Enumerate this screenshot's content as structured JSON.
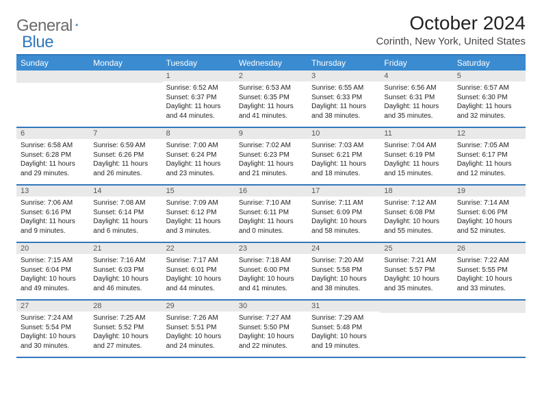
{
  "logo": {
    "word1": "General",
    "word2": "Blue"
  },
  "title": "October 2024",
  "subtitle": "Corinth, New York, United States",
  "colors": {
    "accent": "#2f77bb",
    "header_bg": "#3b8bd0",
    "daynum_bg": "#e9e9e9",
    "logo_gray": "#6a6a6a"
  },
  "weekdays": [
    "Sunday",
    "Monday",
    "Tuesday",
    "Wednesday",
    "Thursday",
    "Friday",
    "Saturday"
  ],
  "weeks": [
    [
      null,
      null,
      {
        "n": "1",
        "sr": "Sunrise: 6:52 AM",
        "ss": "Sunset: 6:37 PM",
        "dl1": "Daylight: 11 hours",
        "dl2": "and 44 minutes."
      },
      {
        "n": "2",
        "sr": "Sunrise: 6:53 AM",
        "ss": "Sunset: 6:35 PM",
        "dl1": "Daylight: 11 hours",
        "dl2": "and 41 minutes."
      },
      {
        "n": "3",
        "sr": "Sunrise: 6:55 AM",
        "ss": "Sunset: 6:33 PM",
        "dl1": "Daylight: 11 hours",
        "dl2": "and 38 minutes."
      },
      {
        "n": "4",
        "sr": "Sunrise: 6:56 AM",
        "ss": "Sunset: 6:31 PM",
        "dl1": "Daylight: 11 hours",
        "dl2": "and 35 minutes."
      },
      {
        "n": "5",
        "sr": "Sunrise: 6:57 AM",
        "ss": "Sunset: 6:30 PM",
        "dl1": "Daylight: 11 hours",
        "dl2": "and 32 minutes."
      }
    ],
    [
      {
        "n": "6",
        "sr": "Sunrise: 6:58 AM",
        "ss": "Sunset: 6:28 PM",
        "dl1": "Daylight: 11 hours",
        "dl2": "and 29 minutes."
      },
      {
        "n": "7",
        "sr": "Sunrise: 6:59 AM",
        "ss": "Sunset: 6:26 PM",
        "dl1": "Daylight: 11 hours",
        "dl2": "and 26 minutes."
      },
      {
        "n": "8",
        "sr": "Sunrise: 7:00 AM",
        "ss": "Sunset: 6:24 PM",
        "dl1": "Daylight: 11 hours",
        "dl2": "and 23 minutes."
      },
      {
        "n": "9",
        "sr": "Sunrise: 7:02 AM",
        "ss": "Sunset: 6:23 PM",
        "dl1": "Daylight: 11 hours",
        "dl2": "and 21 minutes."
      },
      {
        "n": "10",
        "sr": "Sunrise: 7:03 AM",
        "ss": "Sunset: 6:21 PM",
        "dl1": "Daylight: 11 hours",
        "dl2": "and 18 minutes."
      },
      {
        "n": "11",
        "sr": "Sunrise: 7:04 AM",
        "ss": "Sunset: 6:19 PM",
        "dl1": "Daylight: 11 hours",
        "dl2": "and 15 minutes."
      },
      {
        "n": "12",
        "sr": "Sunrise: 7:05 AM",
        "ss": "Sunset: 6:17 PM",
        "dl1": "Daylight: 11 hours",
        "dl2": "and 12 minutes."
      }
    ],
    [
      {
        "n": "13",
        "sr": "Sunrise: 7:06 AM",
        "ss": "Sunset: 6:16 PM",
        "dl1": "Daylight: 11 hours",
        "dl2": "and 9 minutes."
      },
      {
        "n": "14",
        "sr": "Sunrise: 7:08 AM",
        "ss": "Sunset: 6:14 PM",
        "dl1": "Daylight: 11 hours",
        "dl2": "and 6 minutes."
      },
      {
        "n": "15",
        "sr": "Sunrise: 7:09 AM",
        "ss": "Sunset: 6:12 PM",
        "dl1": "Daylight: 11 hours",
        "dl2": "and 3 minutes."
      },
      {
        "n": "16",
        "sr": "Sunrise: 7:10 AM",
        "ss": "Sunset: 6:11 PM",
        "dl1": "Daylight: 11 hours",
        "dl2": "and 0 minutes."
      },
      {
        "n": "17",
        "sr": "Sunrise: 7:11 AM",
        "ss": "Sunset: 6:09 PM",
        "dl1": "Daylight: 10 hours",
        "dl2": "and 58 minutes."
      },
      {
        "n": "18",
        "sr": "Sunrise: 7:12 AM",
        "ss": "Sunset: 6:08 PM",
        "dl1": "Daylight: 10 hours",
        "dl2": "and 55 minutes."
      },
      {
        "n": "19",
        "sr": "Sunrise: 7:14 AM",
        "ss": "Sunset: 6:06 PM",
        "dl1": "Daylight: 10 hours",
        "dl2": "and 52 minutes."
      }
    ],
    [
      {
        "n": "20",
        "sr": "Sunrise: 7:15 AM",
        "ss": "Sunset: 6:04 PM",
        "dl1": "Daylight: 10 hours",
        "dl2": "and 49 minutes."
      },
      {
        "n": "21",
        "sr": "Sunrise: 7:16 AM",
        "ss": "Sunset: 6:03 PM",
        "dl1": "Daylight: 10 hours",
        "dl2": "and 46 minutes."
      },
      {
        "n": "22",
        "sr": "Sunrise: 7:17 AM",
        "ss": "Sunset: 6:01 PM",
        "dl1": "Daylight: 10 hours",
        "dl2": "and 44 minutes."
      },
      {
        "n": "23",
        "sr": "Sunrise: 7:18 AM",
        "ss": "Sunset: 6:00 PM",
        "dl1": "Daylight: 10 hours",
        "dl2": "and 41 minutes."
      },
      {
        "n": "24",
        "sr": "Sunrise: 7:20 AM",
        "ss": "Sunset: 5:58 PM",
        "dl1": "Daylight: 10 hours",
        "dl2": "and 38 minutes."
      },
      {
        "n": "25",
        "sr": "Sunrise: 7:21 AM",
        "ss": "Sunset: 5:57 PM",
        "dl1": "Daylight: 10 hours",
        "dl2": "and 35 minutes."
      },
      {
        "n": "26",
        "sr": "Sunrise: 7:22 AM",
        "ss": "Sunset: 5:55 PM",
        "dl1": "Daylight: 10 hours",
        "dl2": "and 33 minutes."
      }
    ],
    [
      {
        "n": "27",
        "sr": "Sunrise: 7:24 AM",
        "ss": "Sunset: 5:54 PM",
        "dl1": "Daylight: 10 hours",
        "dl2": "and 30 minutes."
      },
      {
        "n": "28",
        "sr": "Sunrise: 7:25 AM",
        "ss": "Sunset: 5:52 PM",
        "dl1": "Daylight: 10 hours",
        "dl2": "and 27 minutes."
      },
      {
        "n": "29",
        "sr": "Sunrise: 7:26 AM",
        "ss": "Sunset: 5:51 PM",
        "dl1": "Daylight: 10 hours",
        "dl2": "and 24 minutes."
      },
      {
        "n": "30",
        "sr": "Sunrise: 7:27 AM",
        "ss": "Sunset: 5:50 PM",
        "dl1": "Daylight: 10 hours",
        "dl2": "and 22 minutes."
      },
      {
        "n": "31",
        "sr": "Sunrise: 7:29 AM",
        "ss": "Sunset: 5:48 PM",
        "dl1": "Daylight: 10 hours",
        "dl2": "and 19 minutes."
      },
      null,
      null
    ]
  ]
}
